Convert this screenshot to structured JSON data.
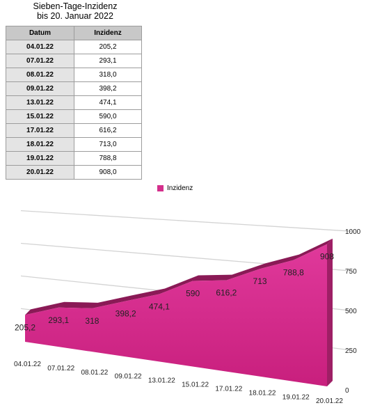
{
  "table": {
    "title_line1": "Sieben-Tage-Inzidenz",
    "title_line2": "bis 20. Januar 2022",
    "header_date": "Datum",
    "header_value": "Inzidenz",
    "rows": [
      {
        "date": "04.01.22",
        "value": "205,2"
      },
      {
        "date": "07.01.22",
        "value": "293,1"
      },
      {
        "date": "08.01.22",
        "value": "318,0"
      },
      {
        "date": "09.01.22",
        "value": "398,2"
      },
      {
        "date": "13.01.22",
        "value": "474,1"
      },
      {
        "date": "15.01.22",
        "value": "590,0"
      },
      {
        "date": "17.01.22",
        "value": "616,2"
      },
      {
        "date": "18.01.22",
        "value": "713,0"
      },
      {
        "date": "19.01.22",
        "value": "788,8"
      },
      {
        "date": "20.01.22",
        "value": "908,0"
      }
    ]
  },
  "colors": {
    "series": "#d42f8c",
    "series_dark": "#8a1a56",
    "table_header": "#c8c8c8",
    "table_date_cell": "#e4e4e4"
  },
  "chart_data": {
    "type": "area",
    "title": "",
    "categories": [
      "04.01.22",
      "07.01.22",
      "08.01.22",
      "09.01.22",
      "13.01.22",
      "15.01.22",
      "17.01.22",
      "18.01.22",
      "19.01.22",
      "20.01.22"
    ],
    "series": [
      {
        "name": "Inzidenz",
        "values": [
          205.2,
          293.1,
          318,
          398.2,
          474.1,
          590,
          616.2,
          713,
          788.8,
          908
        ],
        "labels": [
          "205,2",
          "293,1",
          "318",
          "398,2",
          "474,1",
          "590",
          "616,2",
          "713",
          "788,8",
          "908"
        ]
      }
    ],
    "ylim": [
      0,
      1000
    ],
    "yticks": [
      0,
      250,
      500,
      750,
      1000
    ],
    "ytick_labels": [
      "0",
      "250",
      "500",
      "750",
      "1000"
    ],
    "grid": true,
    "legend": "top",
    "perspective": "3d"
  }
}
